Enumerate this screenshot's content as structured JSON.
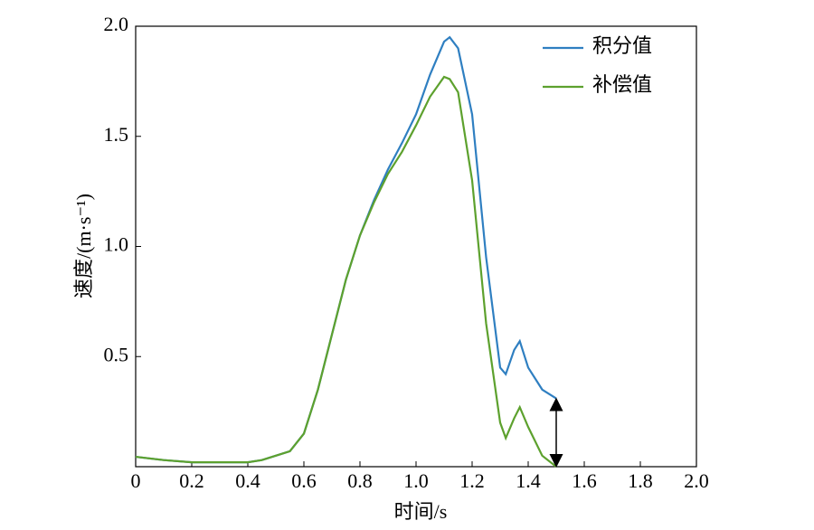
{
  "chart_data": {
    "type": "line",
    "x_label": "时间/s",
    "y_label": "速度/(m·s⁻¹)",
    "x": [
      0,
      0.1,
      0.2,
      0.3,
      0.4,
      0.45,
      0.5,
      0.55,
      0.6,
      0.65,
      0.7,
      0.75,
      0.8,
      0.85,
      0.9,
      0.95,
      1.0,
      1.05,
      1.1,
      1.12,
      1.15,
      1.2,
      1.25,
      1.3,
      1.32,
      1.35,
      1.37,
      1.4,
      1.45,
      1.5
    ],
    "series": [
      {
        "name": "积分值",
        "color": "#2f7fc1",
        "values": [
          0.045,
          0.03,
          0.02,
          0.02,
          0.02,
          0.03,
          0.05,
          0.07,
          0.15,
          0.35,
          0.6,
          0.85,
          1.05,
          1.21,
          1.35,
          1.47,
          1.6,
          1.78,
          1.93,
          1.95,
          1.9,
          1.6,
          0.95,
          0.45,
          0.42,
          0.53,
          0.57,
          0.45,
          0.35,
          0.31
        ]
      },
      {
        "name": "补偿值",
        "color": "#5da12e",
        "values": [
          0.045,
          0.03,
          0.02,
          0.02,
          0.02,
          0.03,
          0.05,
          0.07,
          0.15,
          0.35,
          0.6,
          0.85,
          1.05,
          1.2,
          1.33,
          1.43,
          1.55,
          1.68,
          1.77,
          1.76,
          1.7,
          1.3,
          0.65,
          0.2,
          0.13,
          0.22,
          0.27,
          0.18,
          0.05,
          0.0
        ]
      }
    ],
    "xlim": [
      0,
      2.0
    ],
    "ylim": [
      0,
      2.0
    ],
    "xticks": [
      0,
      0.2,
      0.4,
      0.6,
      0.8,
      {
        "value": 1.0,
        "label": "1.0"
      },
      1.2,
      1.4,
      1.6,
      1.8,
      {
        "value": 2.0,
        "label": "2.0"
      }
    ],
    "yticks": [
      0.5,
      {
        "value": 1.0,
        "label": "1.0"
      },
      1.5,
      {
        "value": 2.0,
        "label": "2.0"
      }
    ],
    "legend": "upper right",
    "grid": false
  }
}
